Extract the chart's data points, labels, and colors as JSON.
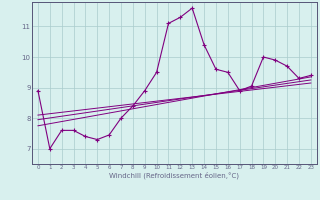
{
  "xlabel": "Windchill (Refroidissement éolien,°C)",
  "bg_color": "#d8f0ee",
  "line_color": "#800080",
  "grid_color": "#aacccc",
  "axis_color": "#666688",
  "spine_color": "#555577",
  "xlim": [
    -0.5,
    23.5
  ],
  "ylim": [
    6.5,
    11.8
  ],
  "yticks": [
    7,
    8,
    9,
    10,
    11
  ],
  "xticks": [
    0,
    1,
    2,
    3,
    4,
    5,
    6,
    7,
    8,
    9,
    10,
    11,
    12,
    13,
    14,
    15,
    16,
    17,
    18,
    19,
    20,
    21,
    22,
    23
  ],
  "series1_x": [
    0,
    1,
    2,
    3,
    4,
    5,
    6,
    7,
    8,
    9,
    10,
    11,
    12,
    13,
    14,
    15,
    16,
    17,
    18,
    19,
    20,
    21,
    22,
    23
  ],
  "series1_y": [
    8.9,
    7.0,
    7.6,
    7.6,
    7.4,
    7.3,
    7.45,
    8.0,
    8.4,
    8.9,
    9.5,
    11.1,
    11.3,
    11.6,
    10.4,
    9.6,
    9.5,
    8.9,
    9.05,
    10.0,
    9.9,
    9.7,
    9.3,
    9.4
  ],
  "trend1_x0": 0,
  "trend1_y0": 7.75,
  "trend1_x1": 23,
  "trend1_y1": 9.35,
  "trend2_x0": 0,
  "trend2_y0": 7.95,
  "trend2_x1": 23,
  "trend2_y1": 9.25,
  "trend3_x0": 0,
  "trend3_y0": 8.1,
  "trend3_x1": 23,
  "trend3_y1": 9.15
}
